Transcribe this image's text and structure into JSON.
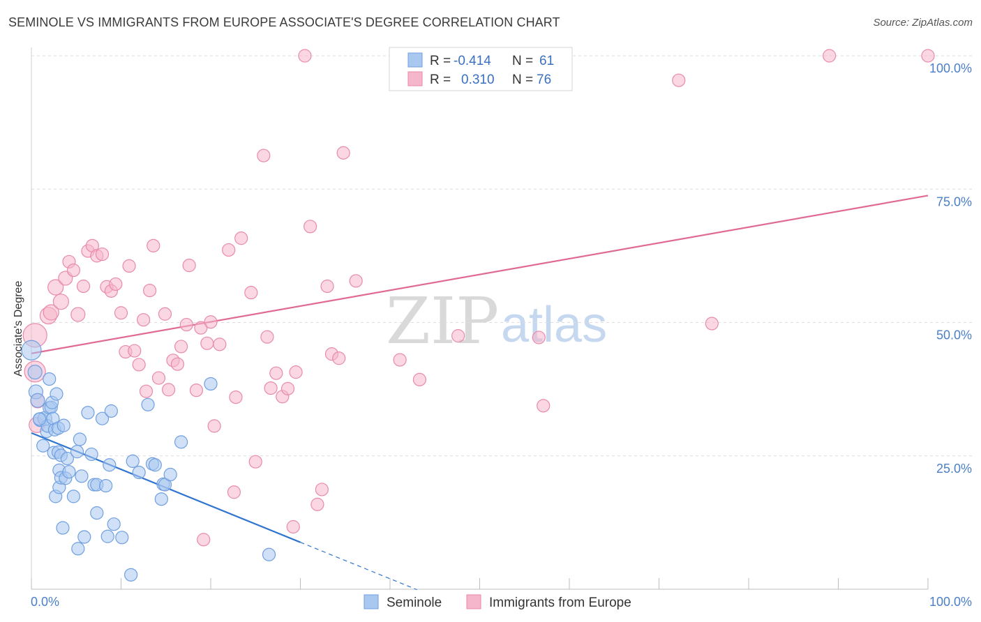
{
  "title": "SEMINOLE VS IMMIGRANTS FROM EUROPE ASSOCIATE'S DEGREE CORRELATION CHART",
  "source": "Source: ZipAtlas.com",
  "watermark": {
    "zip": "ZIP",
    "atlas": "atlas"
  },
  "colors": {
    "blue": "#4a86d8",
    "blue_fill": "#a9c8f0",
    "pink": "#e36a96",
    "pink_fill": "#f5b6cb",
    "tick_label": "#4a7fc8"
  },
  "chart_data": {
    "type": "scatter",
    "title": "SEMINOLE VS IMMIGRANTS FROM EUROPE ASSOCIATE'S DEGREE CORRELATION CHART",
    "xlabel": "",
    "ylabel": "Associate's Degree",
    "xlim": [
      0,
      100
    ],
    "ylim": [
      0,
      100
    ],
    "x_tick_labels": [
      "0.0%",
      "100.0%"
    ],
    "y_tick_labels": [
      "25.0%",
      "50.0%",
      "75.0%",
      "100.0%"
    ],
    "y_ticks": [
      25,
      50,
      75,
      100
    ],
    "grid": true,
    "legend": {
      "position": "top-center",
      "rows": [
        {
          "r_label": "R = ",
          "r_value": "-0.414",
          "n_label": "N = ",
          "n_value": "61"
        },
        {
          "r_label": "R = ",
          "r_value": "0.310",
          "n_label": "N = ",
          "n_value": "76"
        }
      ]
    },
    "series": [
      {
        "name": "Seminole",
        "color": "#4a86d8",
        "trend": {
          "x0": 0,
          "y0": 29.3,
          "x1": 30,
          "y1": 8.8,
          "dashed_to_x": 43
        },
        "points": [
          [
            0,
            44.8,
            14
          ],
          [
            0.4,
            40.7,
            10
          ],
          [
            0.5,
            37.0,
            10
          ],
          [
            0.7,
            35.4,
            10
          ],
          [
            1.0,
            31.8,
            10
          ],
          [
            1.3,
            26.9,
            9
          ],
          [
            1.5,
            32.0,
            10
          ],
          [
            1.7,
            29.6,
            9
          ],
          [
            1.8,
            30.6,
            9
          ],
          [
            2.0,
            34.0,
            9
          ],
          [
            2.0,
            39.4,
            9
          ],
          [
            2.2,
            34.1,
            9
          ],
          [
            2.3,
            35.0,
            9
          ],
          [
            2.4,
            32.0,
            9
          ],
          [
            2.5,
            25.6,
            9
          ],
          [
            2.6,
            29.9,
            9
          ],
          [
            2.7,
            17.4,
            9
          ],
          [
            2.8,
            36.6,
            9
          ],
          [
            3.0,
            30.2,
            9
          ],
          [
            3.0,
            25.7,
            9
          ],
          [
            3.1,
            22.3,
            9
          ],
          [
            3.1,
            19.1,
            9
          ],
          [
            3.3,
            20.9,
            9
          ],
          [
            3.3,
            25.1,
            9
          ],
          [
            3.5,
            11.5,
            9
          ],
          [
            3.6,
            30.7,
            9
          ],
          [
            3.8,
            20.8,
            9
          ],
          [
            4.0,
            24.5,
            9
          ],
          [
            4.2,
            22.0,
            9
          ],
          [
            4.7,
            17.4,
            9
          ],
          [
            5.1,
            25.8,
            9
          ],
          [
            5.2,
            7.6,
            9
          ],
          [
            5.4,
            28.1,
            9
          ],
          [
            5.6,
            21.2,
            9
          ],
          [
            5.9,
            9.8,
            9
          ],
          [
            6.3,
            33.1,
            9
          ],
          [
            6.7,
            25.3,
            9
          ],
          [
            7.0,
            19.6,
            9
          ],
          [
            7.3,
            14.3,
            9
          ],
          [
            7.3,
            19.6,
            9
          ],
          [
            7.9,
            32.0,
            9
          ],
          [
            8.3,
            19.4,
            9
          ],
          [
            8.5,
            9.9,
            9
          ],
          [
            8.7,
            23.3,
            9
          ],
          [
            8.9,
            33.4,
            9
          ],
          [
            9.2,
            12.2,
            9
          ],
          [
            10.1,
            9.7,
            9
          ],
          [
            11.1,
            2.7,
            9
          ],
          [
            11.3,
            24.0,
            9
          ],
          [
            12.0,
            21.9,
            9
          ],
          [
            13.0,
            34.6,
            9
          ],
          [
            13.5,
            23.5,
            9
          ],
          [
            13.8,
            23.3,
            9
          ],
          [
            14.5,
            16.9,
            9
          ],
          [
            14.7,
            19.7,
            9
          ],
          [
            14.9,
            19.6,
            9
          ],
          [
            15.5,
            21.5,
            9
          ],
          [
            16.7,
            27.6,
            9
          ],
          [
            20.0,
            38.5,
            9
          ],
          [
            26.5,
            6.5,
            9
          ],
          [
            0.9,
            31.9,
            9
          ]
        ]
      },
      {
        "name": "Immigrants from Europe",
        "color": "#e36a96",
        "trend": {
          "x0": 0,
          "y0": 44.2,
          "x1": 100,
          "y1": 73.8
        },
        "points": [
          [
            0.4,
            47.6,
            17
          ],
          [
            0.4,
            40.8,
            15
          ],
          [
            0.6,
            30.8,
            11
          ],
          [
            0.7,
            35.3,
            10
          ],
          [
            1.9,
            51.3,
            12
          ],
          [
            2.2,
            51.9,
            11
          ],
          [
            2.7,
            56.6,
            11
          ],
          [
            3.3,
            53.9,
            11
          ],
          [
            3.8,
            58.3,
            10
          ],
          [
            4.2,
            61.4,
            9
          ],
          [
            4.7,
            59.8,
            9
          ],
          [
            5.2,
            51.5,
            10
          ],
          [
            5.8,
            56.8,
            9
          ],
          [
            6.3,
            63.4,
            9
          ],
          [
            6.8,
            64.4,
            9
          ],
          [
            7.3,
            62.5,
            9
          ],
          [
            7.9,
            62.8,
            9
          ],
          [
            8.4,
            56.7,
            9
          ],
          [
            8.9,
            55.9,
            9
          ],
          [
            9.4,
            57.2,
            9
          ],
          [
            10.0,
            51.8,
            9
          ],
          [
            10.5,
            44.5,
            9
          ],
          [
            10.9,
            60.6,
            9
          ],
          [
            11.5,
            44.7,
            9
          ],
          [
            12.0,
            42.1,
            9
          ],
          [
            12.5,
            50.5,
            9
          ],
          [
            12.8,
            37.1,
            9
          ],
          [
            13.2,
            56.0,
            9
          ],
          [
            13.6,
            64.4,
            9
          ],
          [
            14.2,
            39.6,
            9
          ],
          [
            14.9,
            51.6,
            9
          ],
          [
            15.3,
            37.4,
            9
          ],
          [
            15.8,
            42.9,
            9
          ],
          [
            16.3,
            42.2,
            9
          ],
          [
            16.7,
            45.5,
            9
          ],
          [
            17.3,
            49.6,
            9
          ],
          [
            17.6,
            60.7,
            9
          ],
          [
            18.4,
            37.3,
            9
          ],
          [
            18.9,
            49.0,
            9
          ],
          [
            19.2,
            9.3,
            9
          ],
          [
            19.6,
            46.1,
            9
          ],
          [
            20.0,
            50.1,
            9
          ],
          [
            20.4,
            30.6,
            9
          ],
          [
            21.0,
            45.9,
            9
          ],
          [
            22.0,
            63.6,
            9
          ],
          [
            22.6,
            18.2,
            9
          ],
          [
            22.8,
            36.0,
            9
          ],
          [
            23.4,
            65.8,
            9
          ],
          [
            24.5,
            55.6,
            9
          ],
          [
            25.0,
            23.9,
            9
          ],
          [
            25.9,
            81.3,
            9
          ],
          [
            26.3,
            47.3,
            9
          ],
          [
            26.7,
            37.7,
            9
          ],
          [
            27.3,
            40.5,
            9
          ],
          [
            28.0,
            36.1,
            9
          ],
          [
            28.6,
            37.6,
            9
          ],
          [
            29.2,
            11.7,
            9
          ],
          [
            29.5,
            40.7,
            9
          ],
          [
            30.5,
            100.0,
            9
          ],
          [
            31.1,
            68.0,
            9
          ],
          [
            31.9,
            15.9,
            9
          ],
          [
            32.4,
            18.7,
            9
          ],
          [
            33.0,
            56.8,
            9
          ],
          [
            33.5,
            44.1,
            9
          ],
          [
            34.3,
            43.3,
            9
          ],
          [
            34.8,
            81.8,
            9
          ],
          [
            36.2,
            57.8,
            9
          ],
          [
            41.1,
            43.0,
            9
          ],
          [
            43.3,
            39.3,
            9
          ],
          [
            47.6,
            47.5,
            9
          ],
          [
            56.6,
            47.2,
            9
          ],
          [
            57.1,
            34.4,
            9
          ],
          [
            72.2,
            95.4,
            9
          ],
          [
            75.9,
            49.8,
            9
          ],
          [
            89.0,
            100.0,
            9
          ],
          [
            100.0,
            100.0,
            9
          ]
        ]
      }
    ]
  },
  "bottom_legend": [
    {
      "label": "Seminole"
    },
    {
      "label": "Immigrants from Europe"
    }
  ]
}
